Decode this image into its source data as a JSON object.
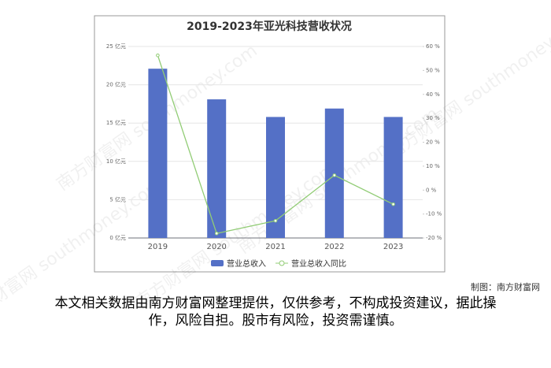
{
  "chart_data": {
    "type": "bar-line",
    "title": "2019-2023年亚光科技营收状况",
    "categories": [
      "2019",
      "2020",
      "2021",
      "2022",
      "2023"
    ],
    "series": [
      {
        "name": "营业总收入",
        "type": "bar",
        "color": "#5470c6",
        "values": [
          22.1,
          18.1,
          15.8,
          16.9,
          15.8
        ]
      },
      {
        "name": "营业总收入同比",
        "type": "line",
        "axis": "y2",
        "color": "#91cc75",
        "values": [
          56.3,
          -18.1,
          -12.8,
          6.2,
          -5.9
        ]
      }
    ],
    "ylim": [
      0,
      25
    ],
    "yticks": [
      {
        "value": 0,
        "label": "0 亿元"
      },
      {
        "value": 5,
        "label": "5 亿元"
      },
      {
        "value": 10,
        "label": "10 亿元"
      },
      {
        "value": 15,
        "label": "15 亿元"
      },
      {
        "value": 20,
        "label": "20 亿元"
      },
      {
        "value": 25,
        "label": "25 亿元"
      }
    ],
    "y2lim": [
      -20,
      60
    ],
    "y2ticks": [
      {
        "value": -20,
        "label": "-20 %"
      },
      {
        "value": -10,
        "label": "-10 %"
      },
      {
        "value": 0,
        "label": "0 %"
      },
      {
        "value": 10,
        "label": "10 %"
      },
      {
        "value": 20,
        "label": "20 %"
      },
      {
        "value": 30,
        "label": "30 %"
      },
      {
        "value": 40,
        "label": "40 %"
      },
      {
        "value": 50,
        "label": "50 %"
      },
      {
        "value": 60,
        "label": "60 %"
      }
    ],
    "grid": true,
    "legend": "bottom"
  },
  "watermark": "南方财富网 southmoney.com",
  "source": "制图：南方财富网",
  "disclaimer": "本文相关数据由南方财富网整理提供，仅供参考，不构成投资建议，据此操作，风险自担。股市有风险，投资需谨慎。"
}
